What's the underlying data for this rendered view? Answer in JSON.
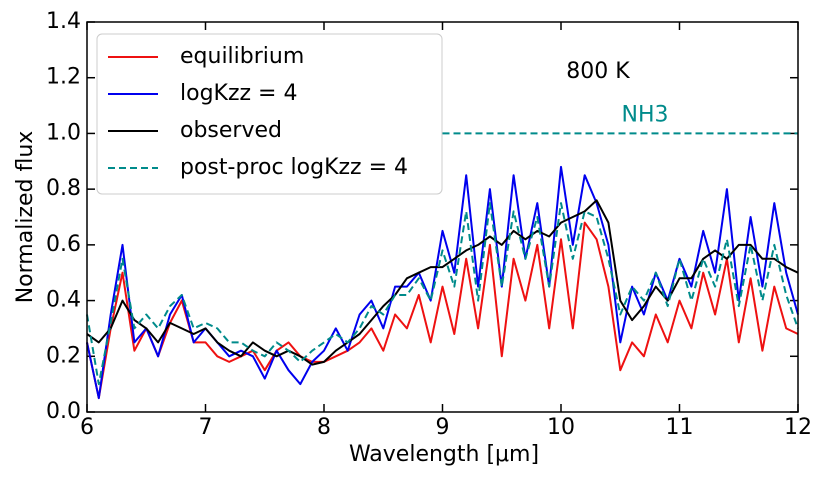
{
  "chart_data": {
    "type": "line",
    "xlabel": "Wavelength [μm]",
    "ylabel": "Normalized flux",
    "annotation": "800 K",
    "reference_line": {
      "label": "NH3",
      "y": 1.0,
      "x": [
        9,
        12
      ],
      "color": "#008b8b"
    },
    "xlim": [
      6,
      12
    ],
    "ylim": [
      0,
      1.4
    ],
    "xticks": [
      6,
      7,
      8,
      9,
      10,
      11,
      12
    ],
    "yticks": [
      {
        "value": 0,
        "label": "0.0"
      },
      {
        "value": 0.2,
        "label": "0.2"
      },
      {
        "value": 0.4,
        "label": "0.4"
      },
      {
        "value": 0.6,
        "label": "0.6"
      },
      {
        "value": 0.8,
        "label": "0.8"
      },
      {
        "value": 1.0,
        "label": "1.0"
      },
      {
        "value": 1.2,
        "label": "1.2"
      },
      {
        "value": 1.4,
        "label": "1.4"
      }
    ],
    "legend": "upper left",
    "x": [
      6.0,
      6.1,
      6.2,
      6.3,
      6.4,
      6.5,
      6.6,
      6.7,
      6.8,
      6.9,
      7.0,
      7.1,
      7.2,
      7.3,
      7.4,
      7.5,
      7.6,
      7.7,
      7.8,
      7.9,
      8.0,
      8.1,
      8.2,
      8.3,
      8.4,
      8.5,
      8.6,
      8.7,
      8.8,
      8.9,
      9.0,
      9.1,
      9.2,
      9.3,
      9.4,
      9.5,
      9.6,
      9.7,
      9.8,
      9.9,
      10.0,
      10.1,
      10.2,
      10.3,
      10.4,
      10.5,
      10.6,
      10.7,
      10.8,
      10.9,
      11.0,
      11.1,
      11.2,
      11.3,
      11.4,
      11.5,
      11.6,
      11.7,
      11.8,
      11.9,
      12.0
    ],
    "series": [
      {
        "name": "equilibrium",
        "color": "#ee1111",
        "dash": false,
        "values": [
          0.25,
          0.05,
          0.3,
          0.5,
          0.22,
          0.3,
          0.2,
          0.32,
          0.4,
          0.25,
          0.25,
          0.2,
          0.18,
          0.2,
          0.22,
          0.15,
          0.22,
          0.25,
          0.2,
          0.18,
          0.18,
          0.2,
          0.22,
          0.25,
          0.3,
          0.22,
          0.35,
          0.3,
          0.42,
          0.25,
          0.45,
          0.28,
          0.55,
          0.3,
          0.6,
          0.2,
          0.55,
          0.4,
          0.6,
          0.3,
          0.62,
          0.3,
          0.68,
          0.62,
          0.45,
          0.15,
          0.25,
          0.2,
          0.35,
          0.25,
          0.4,
          0.3,
          0.5,
          0.35,
          0.55,
          0.25,
          0.48,
          0.22,
          0.45,
          0.3,
          0.28
        ]
      },
      {
        "name": "logKzz = 4",
        "color": "#0000ee",
        "dash": false,
        "values": [
          0.25,
          0.05,
          0.35,
          0.6,
          0.25,
          0.3,
          0.2,
          0.35,
          0.42,
          0.25,
          0.3,
          0.25,
          0.2,
          0.22,
          0.2,
          0.12,
          0.22,
          0.15,
          0.1,
          0.18,
          0.22,
          0.3,
          0.22,
          0.35,
          0.4,
          0.3,
          0.45,
          0.45,
          0.5,
          0.4,
          0.65,
          0.5,
          0.85,
          0.45,
          0.8,
          0.45,
          0.85,
          0.55,
          0.75,
          0.45,
          0.88,
          0.6,
          0.85,
          0.75,
          0.6,
          0.25,
          0.45,
          0.35,
          0.5,
          0.4,
          0.55,
          0.45,
          0.65,
          0.5,
          0.8,
          0.4,
          0.7,
          0.45,
          0.75,
          0.5,
          0.35
        ]
      },
      {
        "name": "observed",
        "color": "#000000",
        "dash": false,
        "values": [
          0.28,
          0.25,
          0.3,
          0.4,
          0.33,
          0.3,
          0.25,
          0.32,
          0.3,
          0.28,
          0.3,
          0.25,
          0.22,
          0.2,
          0.25,
          0.22,
          0.2,
          0.22,
          0.2,
          0.17,
          0.18,
          0.22,
          0.25,
          0.28,
          0.33,
          0.38,
          0.42,
          0.48,
          0.5,
          0.52,
          0.52,
          0.55,
          0.58,
          0.6,
          0.63,
          0.6,
          0.65,
          0.62,
          0.65,
          0.63,
          0.68,
          0.7,
          0.72,
          0.76,
          0.68,
          0.4,
          0.33,
          0.38,
          0.45,
          0.4,
          0.48,
          0.48,
          0.55,
          0.58,
          0.55,
          0.6,
          0.6,
          0.55,
          0.55,
          0.52,
          0.5
        ]
      },
      {
        "name": "post-proc logKzz = 4",
        "color": "#008b8b",
        "dash": true,
        "values": [
          0.35,
          0.1,
          0.32,
          0.55,
          0.3,
          0.35,
          0.3,
          0.38,
          0.42,
          0.3,
          0.32,
          0.3,
          0.25,
          0.25,
          0.22,
          0.2,
          0.25,
          0.22,
          0.18,
          0.22,
          0.25,
          0.28,
          0.25,
          0.3,
          0.38,
          0.35,
          0.42,
          0.42,
          0.48,
          0.4,
          0.58,
          0.45,
          0.72,
          0.4,
          0.75,
          0.45,
          0.72,
          0.55,
          0.7,
          0.45,
          0.75,
          0.55,
          0.72,
          0.7,
          0.55,
          0.35,
          0.45,
          0.4,
          0.5,
          0.38,
          0.55,
          0.4,
          0.55,
          0.45,
          0.62,
          0.38,
          0.6,
          0.4,
          0.6,
          0.42,
          0.3
        ]
      }
    ]
  }
}
